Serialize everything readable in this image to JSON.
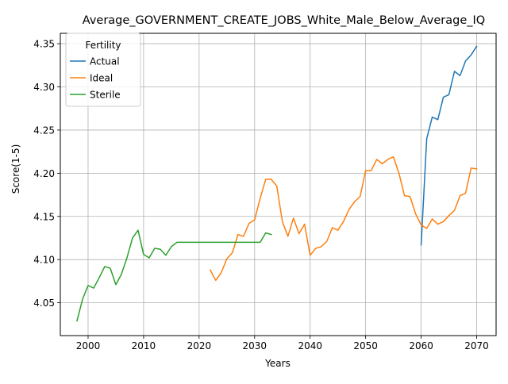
{
  "chart_data": {
    "type": "line",
    "title": "Average_GOVERNMENT_CREATE_JOBS_White_Male_Below_Average_IQ",
    "xlabel": "Years",
    "ylabel": "Score(1-5)",
    "xlim": [
      1995,
      2073.5
    ],
    "ylim": [
      4.012,
      4.362
    ],
    "xticks": [
      2000,
      2010,
      2020,
      2030,
      2040,
      2050,
      2060,
      2070
    ],
    "yticks": [
      4.05,
      4.1,
      4.15,
      4.2,
      4.25,
      4.3,
      4.35
    ],
    "ytick_labels": [
      "4.05",
      "4.10",
      "4.15",
      "4.20",
      "4.25",
      "4.30",
      "4.35"
    ],
    "grid": true,
    "legend": {
      "title": "Fertility",
      "placement": "top-left"
    },
    "series": [
      {
        "name": "Actual",
        "color": "#1f77b4",
        "x": [
          2060,
          2061,
          2062,
          2063,
          2064,
          2065,
          2066,
          2067,
          2068,
          2069,
          2070
        ],
        "values": [
          4.117,
          4.24,
          4.265,
          4.262,
          4.288,
          4.291,
          4.318,
          4.313,
          4.33,
          4.337,
          4.347
        ]
      },
      {
        "name": "Ideal",
        "color": "#ff7f0e",
        "x": [
          2022,
          2023,
          2024,
          2025,
          2026,
          2027,
          2028,
          2029,
          2030,
          2031,
          2032,
          2033,
          2034,
          2035,
          2036,
          2037,
          2038,
          2039,
          2040,
          2041,
          2042,
          2043,
          2044,
          2045,
          2046,
          2047,
          2048,
          2049,
          2050,
          2051,
          2052,
          2053,
          2054,
          2055,
          2056,
          2057,
          2058,
          2059,
          2060,
          2061,
          2062,
          2063,
          2064,
          2065,
          2066,
          2067,
          2068,
          2069,
          2070
        ],
        "values": [
          4.088,
          4.076,
          4.085,
          4.101,
          4.108,
          4.129,
          4.127,
          4.142,
          4.146,
          4.171,
          4.193,
          4.193,
          4.185,
          4.144,
          4.127,
          4.148,
          4.13,
          4.141,
          4.105,
          4.113,
          4.115,
          4.121,
          4.137,
          4.134,
          4.144,
          4.158,
          4.167,
          4.173,
          4.203,
          4.203,
          4.216,
          4.211,
          4.216,
          4.219,
          4.2,
          4.174,
          4.173,
          4.153,
          4.14,
          4.136,
          4.147,
          4.141,
          4.144,
          4.151,
          4.157,
          4.174,
          4.177,
          4.206,
          4.205
        ]
      },
      {
        "name": "Sterile",
        "color": "#2ca02c",
        "x": [
          1998,
          1999,
          2000,
          2001,
          2002,
          2003,
          2004,
          2005,
          2006,
          2007,
          2008,
          2009,
          2010,
          2011,
          2012,
          2013,
          2014,
          2015,
          2016,
          2017,
          2018,
          2019,
          2020,
          2021,
          2022,
          2023,
          2024,
          2025,
          2026,
          2027,
          2028,
          2029,
          2030,
          2031,
          2032,
          2033
        ],
        "values": [
          4.029,
          4.054,
          4.07,
          4.067,
          4.079,
          4.092,
          4.09,
          4.071,
          4.083,
          4.102,
          4.125,
          4.134,
          4.106,
          4.102,
          4.113,
          4.112,
          4.105,
          4.115,
          4.12,
          4.12,
          4.12,
          4.12,
          4.12,
          4.12,
          4.12,
          4.12,
          4.12,
          4.12,
          4.12,
          4.12,
          4.12,
          4.12,
          4.12,
          4.12,
          4.131,
          4.129
        ]
      }
    ]
  }
}
